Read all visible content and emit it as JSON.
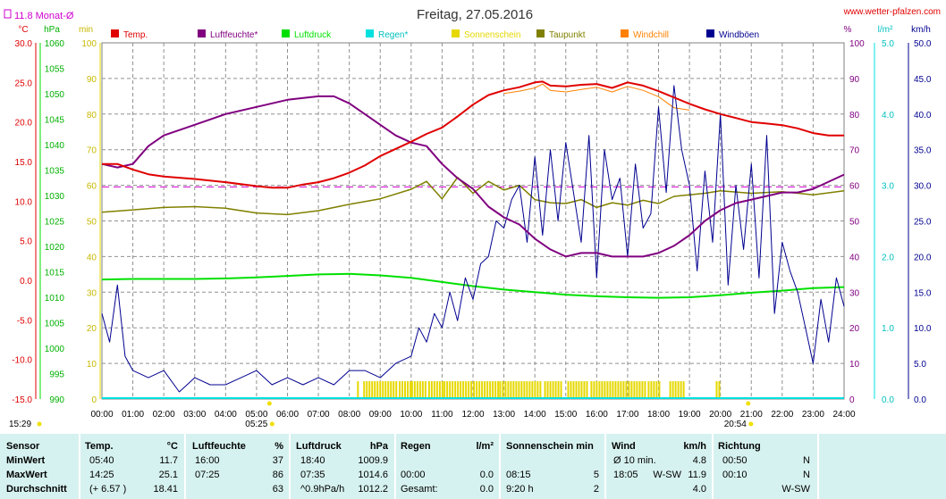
{
  "title": "Freitag, 27.05.2016",
  "url": "www.wetter-pfalzen.com",
  "month_avg_label": "11.8 Monat-Ø",
  "colors": {
    "temp": "#e00000",
    "hum": "#800080",
    "press": "#00e000",
    "rain": "#00e0e0",
    "sun": "#e6d800",
    "dew": "#808000",
    "chill": "#ff8000",
    "gust": "#000090",
    "avg": "#d000d0"
  },
  "axes": {
    "temp": {
      "unit": "°C",
      "min": -15,
      "max": 30,
      "ticks": [
        "-15.0",
        "-10.0",
        "-5.0",
        "0.0",
        "5.0",
        "10.0",
        "15.0",
        "20.0",
        "25.0",
        "30.0"
      ]
    },
    "press": {
      "unit": "hPa",
      "min": 990,
      "max": 1060,
      "ticks": [
        "990",
        "995",
        "1000",
        "1005",
        "1010",
        "1015",
        "1020",
        "1025",
        "1030",
        "1035",
        "1040",
        "1045",
        "1050",
        "1055",
        "1060"
      ]
    },
    "min": {
      "unit": "min",
      "ticks": [
        "0",
        "10",
        "20",
        "30",
        "40",
        "50",
        "60",
        "70",
        "80",
        "90",
        "100"
      ]
    },
    "pct": {
      "unit": "%",
      "ticks": [
        "0",
        "10",
        "20",
        "30",
        "40",
        "50",
        "60",
        "70",
        "80",
        "90",
        "100"
      ]
    },
    "rain": {
      "unit": "l/m²",
      "ticks": [
        "0.0",
        "1.0",
        "2.0",
        "3.0",
        "4.0",
        "5.0"
      ]
    },
    "wind": {
      "unit": "km/h",
      "ticks": [
        "0.0",
        "5.0",
        "10.0",
        "15.0",
        "20.0",
        "25.0",
        "30.0",
        "35.0",
        "40.0",
        "45.0",
        "50.0"
      ]
    },
    "x_ticks": [
      "00:00",
      "01:00",
      "02:00",
      "03:00",
      "04:00",
      "05:00",
      "06:00",
      "07:00",
      "08:00",
      "09:00",
      "10:00",
      "11:00",
      "12:00",
      "13:00",
      "14:00",
      "15:00",
      "16:00",
      "17:00",
      "18:00",
      "19:00",
      "20:00",
      "21:00",
      "22:00",
      "23:00",
      "24:00"
    ]
  },
  "sun_events": {
    "sunrise": "05:25",
    "sunset": "20:54",
    "first_light": "15:29"
  },
  "legend": [
    {
      "key": "temp",
      "label": "Temp."
    },
    {
      "key": "hum",
      "label": "Luftfeuchte*"
    },
    {
      "key": "press",
      "label": "Luftdruck"
    },
    {
      "key": "rain",
      "label": "Regen*"
    },
    {
      "key": "sun",
      "label": "Sonnenschein"
    },
    {
      "key": "dew",
      "label": "Taupunkt"
    },
    {
      "key": "chill",
      "label": "Windchill"
    },
    {
      "key": "gust",
      "label": "Windböen"
    }
  ],
  "chart_data": {
    "type": "line",
    "title": "Freitag, 27.05.2016",
    "x_unit": "hour",
    "xlim": [
      0,
      24
    ],
    "month_avg_temp": 11.8,
    "series": [
      {
        "name": "Temp.",
        "axis": "temp",
        "x": [
          0,
          0.5,
          1,
          1.5,
          2,
          3,
          4,
          5,
          5.5,
          6,
          6.5,
          7,
          7.5,
          8,
          8.5,
          9,
          9.5,
          10,
          10.5,
          11,
          11.5,
          12,
          12.5,
          13,
          13.5,
          14,
          14.25,
          14.5,
          15,
          15.5,
          16,
          16.5,
          17,
          17.5,
          18,
          18.5,
          19,
          19.5,
          20,
          20.5,
          21,
          21.5,
          22,
          22.5,
          23,
          23.5,
          24
        ],
        "y": [
          14.7,
          14.7,
          14.0,
          13.4,
          13.1,
          12.8,
          12.4,
          11.9,
          11.7,
          11.7,
          12.1,
          12.4,
          12.9,
          13.6,
          14.5,
          15.7,
          16.6,
          17.5,
          18.5,
          19.3,
          20.7,
          22.2,
          23.4,
          24.0,
          24.4,
          25.0,
          25.1,
          24.6,
          24.5,
          24.7,
          24.8,
          24.3,
          25.0,
          24.6,
          23.9,
          23.1,
          22.3,
          21.6,
          21.0,
          20.5,
          20.0,
          19.8,
          19.6,
          19.2,
          18.6,
          18.3,
          18.3
        ]
      },
      {
        "name": "Luftfeuchte*",
        "axis": "pct",
        "x": [
          0,
          0.5,
          1,
          1.5,
          2,
          3,
          4,
          5,
          6,
          7,
          7.5,
          8,
          8.5,
          9,
          9.5,
          10,
          10.5,
          11,
          11.5,
          12,
          12.5,
          13,
          13.5,
          14,
          14.5,
          15,
          15.5,
          16,
          16.5,
          17,
          17.5,
          18,
          18.5,
          19,
          19.5,
          20,
          20.5,
          21,
          21.5,
          22,
          22.5,
          23,
          23.5,
          24
        ],
        "y": [
          66,
          65,
          66,
          71,
          74,
          77,
          80,
          82,
          84,
          85,
          85,
          83,
          80,
          77,
          74,
          72,
          71,
          66,
          62,
          59,
          54,
          51,
          49,
          45,
          42,
          40,
          41,
          41,
          40,
          40,
          40,
          41,
          43,
          46,
          50,
          53,
          55,
          56,
          57,
          58,
          58,
          59,
          61,
          63
        ]
      },
      {
        "name": "Luftdruck",
        "axis": "press",
        "x": [
          0,
          1,
          2,
          3,
          4,
          5,
          6,
          7,
          8,
          9,
          10,
          11,
          12,
          13,
          14,
          15,
          16,
          17,
          18,
          19,
          20,
          21,
          22,
          23,
          24
        ],
        "y": [
          1013.5,
          1013.6,
          1013.6,
          1013.6,
          1013.7,
          1013.9,
          1014.2,
          1014.5,
          1014.6,
          1014.3,
          1013.8,
          1013.0,
          1012.2,
          1011.5,
          1011.0,
          1010.5,
          1010.2,
          1010.0,
          1009.9,
          1010.0,
          1010.4,
          1010.9,
          1011.3,
          1011.8,
          1012.0
        ]
      },
      {
        "name": "Taupunkt",
        "axis": "temp",
        "x": [
          0,
          1,
          2,
          3,
          4,
          5,
          6,
          7,
          8,
          9,
          10,
          10.5,
          11,
          11.5,
          12,
          12.5,
          13,
          13.5,
          14,
          14.5,
          15,
          15.5,
          16,
          16.5,
          17,
          17.5,
          18,
          18.5,
          19,
          19.5,
          20,
          21,
          22,
          23,
          24
        ],
        "y": [
          8.6,
          8.9,
          9.2,
          9.3,
          9.1,
          8.5,
          8.3,
          8.8,
          9.6,
          10.3,
          11.5,
          12.5,
          10.3,
          13.0,
          11.0,
          12.5,
          11.4,
          12.0,
          10.2,
          9.8,
          9.7,
          10.2,
          9.2,
          9.8,
          9.5,
          10.1,
          9.7,
          10.6,
          10.8,
          11.0,
          11.3,
          11.0,
          11.2,
          10.8,
          11.3
        ]
      },
      {
        "name": "Windchill",
        "axis": "temp",
        "x": [
          13,
          13.5,
          14,
          14.25,
          14.5,
          15,
          15.5,
          16,
          16.5,
          17,
          17.5,
          18,
          18.5,
          19
        ],
        "y": [
          23.6,
          23.9,
          24.3,
          24.8,
          24.0,
          23.8,
          24.1,
          24.4,
          23.8,
          24.5,
          24.0,
          23.2,
          21.8,
          21.5
        ]
      },
      {
        "name": "Windböen",
        "axis": "wind",
        "x": [
          0,
          0.25,
          0.5,
          0.75,
          1,
          1.5,
          2,
          2.5,
          3,
          3.5,
          4,
          4.5,
          5,
          5.5,
          6,
          6.5,
          7,
          7.5,
          8,
          8.5,
          9,
          9.5,
          10,
          10.25,
          10.5,
          10.75,
          11,
          11.25,
          11.5,
          11.75,
          12,
          12.25,
          12.5,
          12.75,
          13,
          13.25,
          13.5,
          13.75,
          14,
          14.25,
          14.5,
          14.75,
          15,
          15.25,
          15.5,
          15.75,
          16,
          16.25,
          16.5,
          16.75,
          17,
          17.25,
          17.5,
          17.75,
          18,
          18.25,
          18.5,
          18.75,
          19,
          19.25,
          19.5,
          19.75,
          20,
          20.25,
          20.5,
          20.75,
          21,
          21.25,
          21.5,
          21.75,
          22,
          22.25,
          22.5,
          22.75,
          23,
          23.25,
          23.5,
          23.75,
          24
        ],
        "y": [
          12,
          8,
          16,
          6,
          4,
          3,
          4,
          1,
          3,
          2,
          2,
          3,
          4,
          2,
          3,
          2,
          3,
          2,
          4,
          4,
          3,
          5,
          6,
          10,
          8,
          12,
          10,
          15,
          11,
          17,
          14,
          19,
          20,
          25,
          24,
          28,
          30,
          22,
          34,
          23,
          35,
          25,
          36,
          29,
          22,
          37,
          17,
          35,
          28,
          31,
          20,
          33,
          24,
          26,
          41,
          29,
          44,
          35,
          30,
          18,
          32,
          22,
          40,
          16,
          30,
          21,
          33,
          17,
          37,
          12,
          22,
          18,
          15,
          10,
          5,
          14,
          8,
          17,
          13
        ]
      }
    ],
    "sunshine_hours": [
      [
        8.25,
        8.3
      ],
      [
        8.45,
        9.5
      ],
      [
        9.6,
        10.0
      ],
      [
        10.0,
        10.5
      ],
      [
        10.55,
        11.0
      ],
      [
        11.05,
        12.8
      ],
      [
        12.85,
        14.2
      ],
      [
        14.3,
        14.9
      ],
      [
        15.05,
        15.7
      ],
      [
        15.8,
        17.6
      ],
      [
        17.65,
        18.05
      ],
      [
        18.35,
        18.85
      ],
      [
        19.85,
        19.95
      ]
    ],
    "sunshine_level_min": 5
  },
  "table": {
    "headers": {
      "sensor": "Sensor",
      "temp": "Temp.",
      "temp_unit": "°C",
      "hum": "Luftfeuchte",
      "hum_unit": "%",
      "press": "Luftdruck",
      "press_unit": "hPa",
      "rain": "Regen",
      "rain_unit": "l/m²",
      "sun": "Sonnenschein min",
      "wind": "Wind",
      "wind_unit": "km/h",
      "dir": "Richtung"
    },
    "rows": [
      {
        "label": "MinWert",
        "temp_t": "05:40",
        "temp_v": "11.7",
        "hum_t": "16:00",
        "hum_v": "37",
        "press_t": "18:40",
        "press_v": "1009.9",
        "rain_t": "",
        "rain_v": "",
        "sun_t": "",
        "sun_v": "",
        "wind_t": "Ø 10 min.",
        "wind_d": "",
        "wind_v": "4.8",
        "dir_t": "00:50",
        "dir_v": "N"
      },
      {
        "label": "MaxWert",
        "temp_t": "14:25",
        "temp_v": "25.1",
        "hum_t": "07:25",
        "hum_v": "86",
        "press_t": "07:35",
        "press_v": "1014.6",
        "rain_t": "00:00",
        "rain_v": "0.0",
        "sun_t": "08:15",
        "sun_v": "5",
        "wind_t": "18:05",
        "wind_d": "W-SW",
        "wind_v": "11.9",
        "dir_t": "00:10",
        "dir_v": "N"
      },
      {
        "label": "Durchschnitt",
        "temp_t": "(+ 6.57 )",
        "temp_v": "18.41",
        "hum_t": "",
        "hum_v": "63",
        "press_t": "^0.9hPa/h",
        "press_v": "1012.2",
        "rain_t": "Gesamt:",
        "rain_v": "0.0",
        "sun_t": "9:20 h",
        "sun_v": "2",
        "wind_t": "",
        "wind_d": "",
        "wind_v": "4.0",
        "dir_t": "",
        "dir_v": "W-SW"
      }
    ]
  }
}
